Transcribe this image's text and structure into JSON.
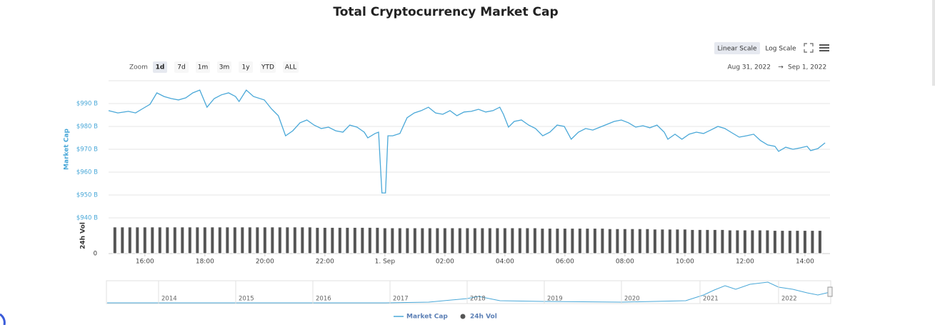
{
  "chart_data": {
    "type": "line",
    "title": "Total Cryptocurrency Market Cap",
    "x": [
      14.79,
      15.1,
      15.45,
      15.69,
      15.93,
      16.17,
      16.4,
      16.64,
      16.88,
      17.12,
      17.36,
      17.6,
      17.83,
      18.07,
      18.31,
      18.55,
      18.79,
      19.02,
      19.14,
      19.38,
      19.62,
      19.98,
      20.21,
      20.45,
      20.69,
      20.93,
      21.17,
      21.4,
      21.64,
      21.88,
      22.12,
      22.36,
      22.6,
      22.83,
      23.07,
      23.31,
      23.43,
      23.67,
      23.79,
      23.9,
      24.02,
      24.1,
      24.26,
      24.5,
      24.74,
      24.98,
      25.21,
      25.45,
      25.69,
      25.93,
      26.17,
      26.4,
      26.64,
      26.88,
      27.12,
      27.36,
      27.6,
      27.83,
      27.95,
      28.12,
      28.31,
      28.55,
      28.79,
      29.02,
      29.26,
      29.5,
      29.74,
      29.98,
      30.21,
      30.45,
      30.69,
      30.93,
      31.17,
      31.4,
      31.64,
      31.88,
      32.12,
      32.36,
      32.6,
      32.83,
      33.07,
      33.31,
      33.43,
      33.67,
      33.9,
      34.14,
      34.38,
      34.62,
      34.86,
      35.1,
      35.33,
      35.57,
      35.81,
      36.05,
      36.29,
      36.52,
      36.76,
      37.0,
      37.12,
      37.36,
      37.6,
      37.83,
      38.07,
      38.19,
      38.43,
      38.67
    ],
    "series": [
      {
        "name": "Market Cap",
        "color": "#4aa8d8",
        "values": [
          986.9,
          985.9,
          986.6,
          985.9,
          987.8,
          989.7,
          994.7,
          993.1,
          992.2,
          991.6,
          992.5,
          994.7,
          995.9,
          988.4,
          992.2,
          993.8,
          994.7,
          993.1,
          990.9,
          995.9,
          993.1,
          991.6,
          987.8,
          984.7,
          975.9,
          978.1,
          981.6,
          982.8,
          980.6,
          979.1,
          979.7,
          978.1,
          977.5,
          980.6,
          979.7,
          977.5,
          975.0,
          976.9,
          977.5,
          950.9,
          950.9,
          975.9,
          975.9,
          976.9,
          983.8,
          985.9,
          986.9,
          988.4,
          985.9,
          985.3,
          986.9,
          984.7,
          986.3,
          986.6,
          987.5,
          986.3,
          986.9,
          988.4,
          985.3,
          979.7,
          982.2,
          982.8,
          980.6,
          979.1,
          975.9,
          977.5,
          980.6,
          980.0,
          974.4,
          977.5,
          979.1,
          978.4,
          979.7,
          980.9,
          982.2,
          982.8,
          981.6,
          979.7,
          980.3,
          979.4,
          980.6,
          977.5,
          974.4,
          976.6,
          974.4,
          976.6,
          977.5,
          976.9,
          978.4,
          980.0,
          979.1,
          977.2,
          975.3,
          975.9,
          976.6,
          973.8,
          971.9,
          971.3,
          969.1,
          970.9,
          970.0,
          970.6,
          971.3,
          969.4,
          970.3,
          972.8
        ]
      },
      {
        "name": "24h Vol",
        "color": "#555555",
        "type": "bar",
        "axis": "y2",
        "x": [
          15,
          15.25,
          15.5,
          15.75,
          16,
          16.25,
          16.5,
          16.75,
          17,
          17.25,
          17.5,
          17.75,
          18,
          18.25,
          18.5,
          18.75,
          19,
          19.25,
          19.5,
          19.75,
          20,
          20.25,
          20.5,
          20.75,
          21,
          21.25,
          21.5,
          21.75,
          22,
          22.25,
          22.5,
          22.75,
          23,
          23.25,
          23.5,
          23.75,
          24,
          24.25,
          24.5,
          24.75,
          25,
          25.25,
          25.5,
          25.75,
          26,
          26.25,
          26.5,
          26.75,
          27,
          27.25,
          27.5,
          27.75,
          28,
          28.25,
          28.5,
          28.75,
          29,
          29.25,
          29.5,
          29.75,
          30,
          30.25,
          30.5,
          30.75,
          31,
          31.25,
          31.5,
          31.75,
          32,
          32.25,
          32.5,
          32.75,
          33,
          33.25,
          33.5,
          33.75,
          34,
          34.25,
          34.5,
          34.75,
          35,
          35.25,
          35.5,
          35.75,
          36,
          36.25,
          36.5,
          36.75,
          37,
          37.25,
          37.5,
          37.75,
          38,
          38.25,
          38.5
        ],
        "values": [
          62,
          62,
          62,
          62,
          62,
          62,
          62,
          62,
          62,
          62,
          62,
          62,
          62,
          62,
          62,
          62,
          62,
          62,
          62,
          62,
          62,
          62,
          62,
          62,
          62,
          62,
          62,
          61,
          61,
          61,
          61,
          61,
          61,
          61,
          61,
          61,
          60,
          60,
          60,
          60,
          60,
          60,
          60,
          60,
          60,
          60,
          60,
          60,
          60,
          60,
          60,
          60,
          60,
          60,
          60,
          60,
          60,
          59,
          59,
          59,
          59,
          59,
          59,
          59,
          59,
          59,
          58,
          58,
          58,
          58,
          58,
          58,
          57,
          57,
          57,
          57,
          57,
          56,
          56,
          56,
          56,
          56,
          55,
          55,
          55,
          55,
          55,
          55,
          54,
          54,
          54,
          54,
          54,
          54,
          54
        ]
      }
    ],
    "xlim": [
      14.79,
      38.74
    ],
    "xticks": [
      {
        "value": 16,
        "label": "16:00"
      },
      {
        "value": 18,
        "label": "18:00"
      },
      {
        "value": 20,
        "label": "20:00"
      },
      {
        "value": 22,
        "label": "22:00"
      },
      {
        "value": 24,
        "label": "1. Sep"
      },
      {
        "value": 26,
        "label": "02:00"
      },
      {
        "value": 28,
        "label": "04:00"
      },
      {
        "value": 30,
        "label": "06:00"
      },
      {
        "value": 32,
        "label": "08:00"
      },
      {
        "value": 34,
        "label": "10:00"
      },
      {
        "value": 36,
        "label": "12:00"
      },
      {
        "value": 38,
        "label": "14:00"
      }
    ],
    "ylim": [
      940,
      1000
    ],
    "yticks": [
      {
        "value": 940,
        "label": "$940 B"
      },
      {
        "value": 950,
        "label": "$950 B"
      },
      {
        "value": 960,
        "label": "$960 B"
      },
      {
        "value": 970,
        "label": "$970 B"
      },
      {
        "value": 980,
        "label": "$980 B"
      },
      {
        "value": 990,
        "label": "$990 B"
      }
    ],
    "y2lim": [
      0,
      75
    ],
    "y2ticks": [
      0
    ],
    "y_label": "Market Cap",
    "y2_label": "24h Vol",
    "grid": true
  },
  "toolbar": {
    "zoom_label": "Zoom",
    "zoom_buttons": [
      "1d",
      "7d",
      "1m",
      "3m",
      "1y",
      "YTD",
      "ALL"
    ],
    "scale_buttons": [
      "Linear Scale",
      "Log Scale"
    ],
    "range_from": "Aug 31, 2022",
    "range_arrow": "→",
    "range_to": "Sep 1, 2022"
  },
  "navigator": {
    "labels": [
      "2014",
      "2015",
      "2016",
      "2017",
      "2018",
      "2019",
      "2020",
      "2021",
      "2022"
    ]
  }
}
